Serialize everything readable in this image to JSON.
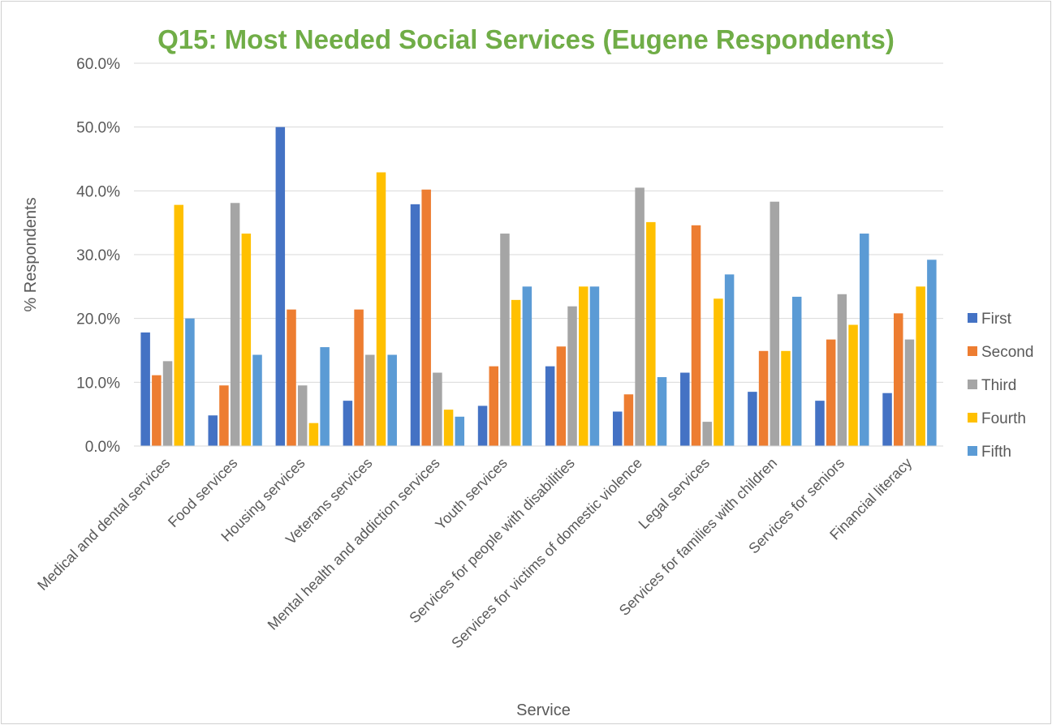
{
  "chart_data": {
    "type": "bar",
    "title": "Q15: Most Needed Social Services (Eugene Respondents)",
    "title_color": "#70AD47",
    "xlabel": "Service",
    "ylabel": "% Respondents",
    "ylim": [
      0,
      60
    ],
    "yticks": [
      "0.0%",
      "10.0%",
      "20.0%",
      "30.0%",
      "40.0%",
      "50.0%",
      "60.0%"
    ],
    "grid": true,
    "legend_position": "right",
    "categories": [
      "Medical and dental services",
      "Food services",
      "Housing services",
      "Veterans services",
      "Mental health and addiction services",
      "Youth services",
      "Services for people with disabilities",
      "Services for victims of domestic violence",
      "Legal services",
      "Services for families with children",
      "Services for seniors",
      "Financial literacy"
    ],
    "series": [
      {
        "name": "First",
        "color": "#4472C4",
        "values": [
          17.8,
          4.8,
          50.0,
          7.1,
          37.9,
          6.3,
          12.5,
          5.4,
          11.5,
          8.5,
          7.1,
          8.3
        ]
      },
      {
        "name": "Second",
        "color": "#ED7D31",
        "values": [
          11.1,
          9.5,
          21.4,
          21.4,
          40.2,
          12.5,
          15.6,
          8.1,
          34.6,
          14.9,
          16.7,
          20.8
        ]
      },
      {
        "name": "Third",
        "color": "#A5A5A5",
        "values": [
          13.3,
          38.1,
          9.5,
          14.3,
          11.5,
          33.3,
          21.9,
          40.5,
          3.8,
          38.3,
          23.8,
          16.7
        ]
      },
      {
        "name": "Fourth",
        "color": "#FFC000",
        "values": [
          37.8,
          33.3,
          3.6,
          42.9,
          5.7,
          22.9,
          25.0,
          35.1,
          23.1,
          14.9,
          19.0,
          25.0
        ]
      },
      {
        "name": "Fifth",
        "color": "#5B9BD5",
        "values": [
          20.0,
          14.3,
          15.5,
          14.3,
          4.6,
          25.0,
          25.0,
          10.8,
          26.9,
          23.4,
          33.3,
          29.2
        ]
      }
    ]
  }
}
